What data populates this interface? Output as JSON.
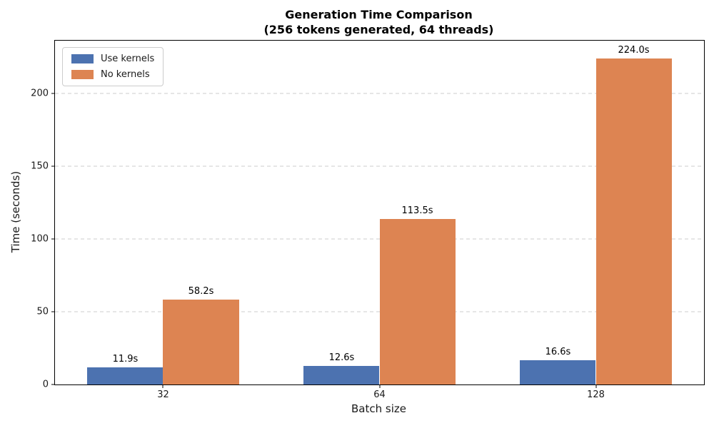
{
  "chart_data": {
    "type": "bar",
    "title": "Generation Time Comparison\n(256 tokens generated, 64 threads)",
    "xlabel": "Batch size",
    "ylabel": "Time (seconds)",
    "categories": [
      "32",
      "64",
      "128"
    ],
    "series": [
      {
        "name": "Use kernels",
        "color": "#4C72B0",
        "values": [
          11.9,
          12.6,
          16.6
        ],
        "labels": [
          "11.9s",
          "12.6s",
          "16.6s"
        ]
      },
      {
        "name": "No kernels",
        "color": "#DD8452",
        "values": [
          58.2,
          113.5,
          224.0
        ],
        "labels": [
          "58.2s",
          "113.5s",
          "224.0s"
        ]
      }
    ],
    "ylim": [
      0,
      236
    ],
    "yticks": [
      0,
      50,
      100,
      150,
      200
    ],
    "grid": "horizontal-dashed",
    "grid_color": "#cccccc",
    "legend_position": "upper-left",
    "bar_width_frac": 0.35
  }
}
